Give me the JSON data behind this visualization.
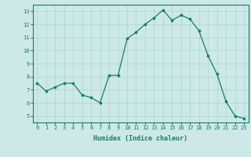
{
  "x": [
    0,
    1,
    2,
    3,
    4,
    5,
    6,
    7,
    8,
    9,
    10,
    11,
    12,
    13,
    14,
    15,
    16,
    17,
    18,
    19,
    20,
    21,
    22,
    23
  ],
  "y": [
    7.5,
    6.9,
    7.2,
    7.5,
    7.5,
    6.6,
    6.4,
    6.0,
    8.1,
    8.1,
    10.9,
    11.4,
    12.0,
    12.5,
    13.1,
    12.3,
    12.7,
    12.4,
    11.5,
    9.6,
    8.2,
    6.1,
    5.0,
    4.8
  ],
  "line_color": "#1a7a6a",
  "marker_color": "#1a7a6a",
  "bg_color": "#cce9e7",
  "grid_color": "#aad4d0",
  "xlabel": "Humidex (Indice chaleur)",
  "ylim": [
    4.5,
    13.5
  ],
  "xlim": [
    -0.5,
    23.5
  ],
  "yticks": [
    5,
    6,
    7,
    8,
    9,
    10,
    11,
    12,
    13
  ],
  "xticks": [
    0,
    1,
    2,
    3,
    4,
    5,
    6,
    7,
    8,
    9,
    10,
    11,
    12,
    13,
    14,
    15,
    16,
    17,
    18,
    19,
    20,
    21,
    22,
    23
  ],
  "axis_color": "#1a7a6a",
  "tick_color": "#1a7a6a",
  "label_color": "#1a7a6a",
  "tick_fontsize": 5.0,
  "xlabel_fontsize": 6.0
}
